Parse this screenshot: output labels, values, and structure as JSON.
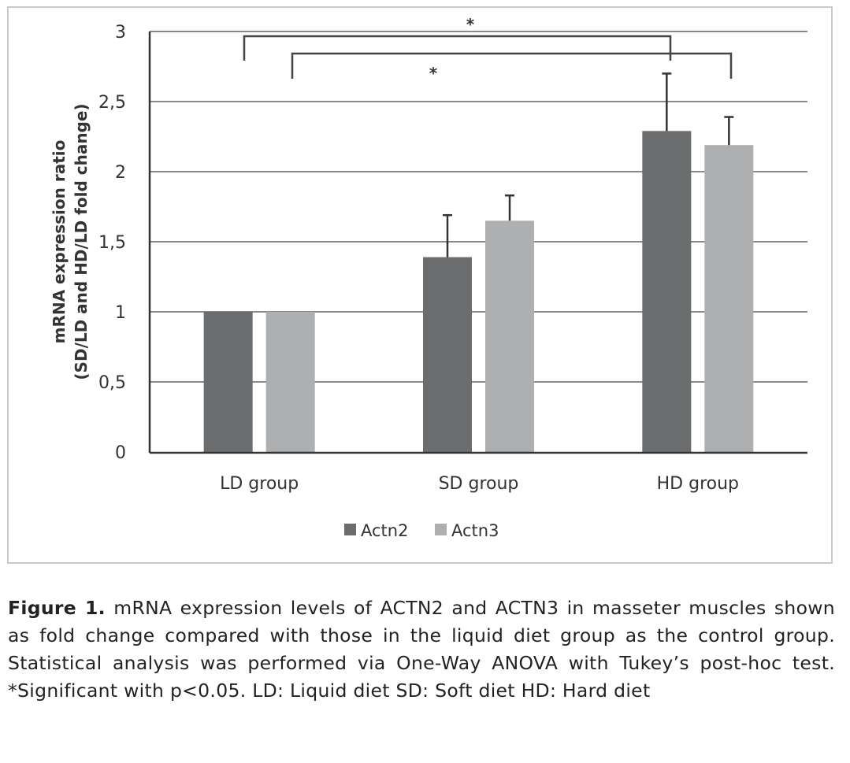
{
  "chart_data": {
    "type": "bar",
    "title": "",
    "xlabel": "",
    "ylabel": "mRNA expression ratio (SD/LD and HD/LD fold change)",
    "ylabel_lines": [
      "mRNA expression ratio",
      "(SD/LD and HD/LD fold change)"
    ],
    "ylim": [
      0,
      3
    ],
    "yticks": [
      "0",
      "0,5",
      "1",
      "1,5",
      "2",
      "2,5",
      "3"
    ],
    "grid": true,
    "legend_position": "bottom",
    "categories": [
      "LD group",
      "SD group",
      "HD group"
    ],
    "series": [
      {
        "name": "Actn2",
        "color": "#6b6c6e",
        "values": [
          1.0,
          1.39,
          2.29
        ],
        "error_upper": [
          null,
          1.69,
          2.7
        ]
      },
      {
        "name": "Actn3",
        "color": "#aeafb1",
        "values": [
          1.0,
          1.65,
          2.19
        ],
        "error_upper": [
          null,
          1.83,
          2.39
        ]
      }
    ],
    "annotations": [
      {
        "type": "significance",
        "from": "LD group Actn2",
        "to": "HD group Actn2",
        "label": "*"
      },
      {
        "type": "significance",
        "from": "LD group Actn3",
        "to": "HD group Actn3",
        "label": "*"
      }
    ]
  },
  "caption": {
    "label": "Figure 1.",
    "text": " mRNA expression levels of ACTN2 and ACTN3 in masseter muscles shown as fold change compared with those in the liquid diet group as the control group. Statistical analysis was performed via One-Way ANOVA with Tukey’s post-hoc test. *Significant with p<0.05. LD: Liquid diet SD: Soft diet HD: Hard diet"
  }
}
